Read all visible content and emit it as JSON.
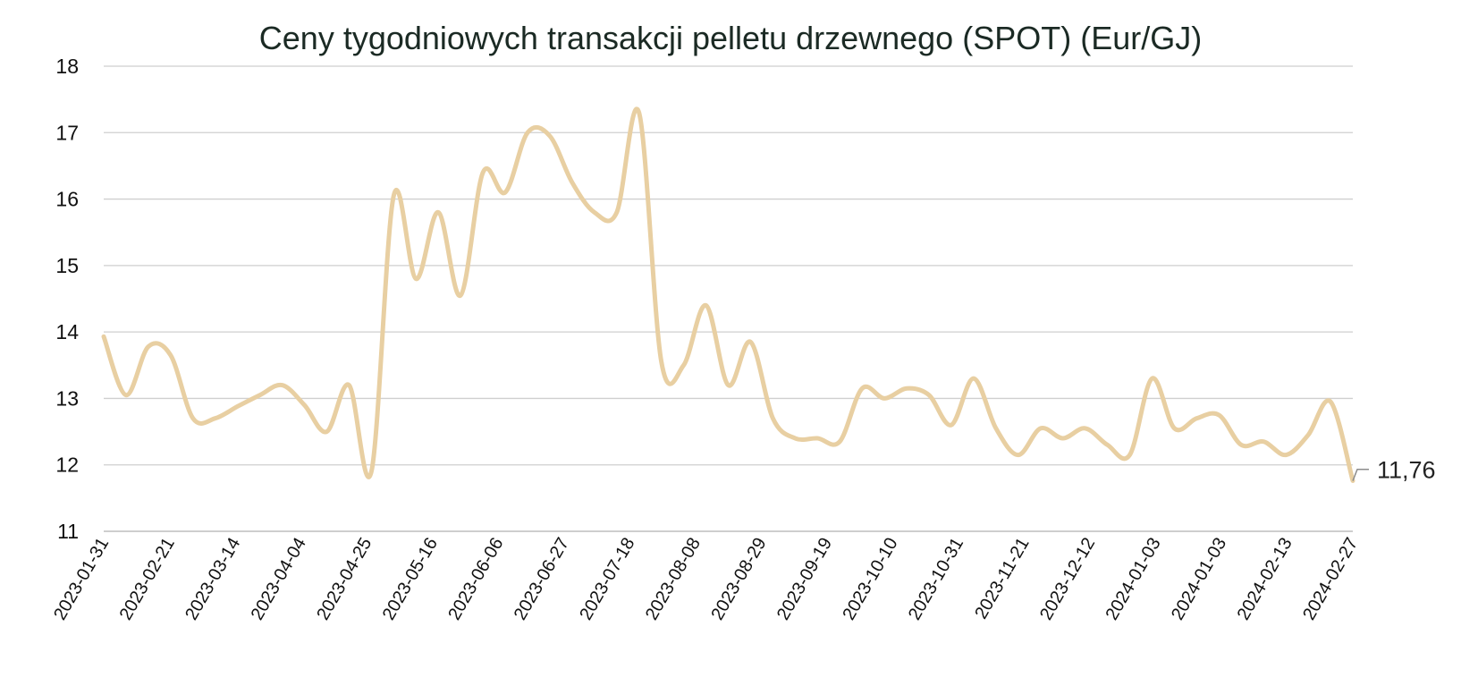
{
  "chart_data": {
    "type": "line",
    "title": "Ceny tygodniowych transakcji pelletu drzewnego (SPOT) (Eur/GJ)",
    "xlabel": "",
    "ylabel": "",
    "ylim": [
      11,
      18
    ],
    "yticks": [
      "11",
      "12",
      "13",
      "14",
      "15",
      "16",
      "17",
      "18"
    ],
    "xtick_labels": [
      "2023-01-31",
      "2023-02-21",
      "2023-03-14",
      "2023-04-04",
      "2023-04-25",
      "2023-05-16",
      "2023-06-06",
      "2023-06-27",
      "2023-07-18",
      "2023-08-08",
      "2023-08-29",
      "2023-09-19",
      "2023-10-10",
      "2023-10-31",
      "2023-11-21",
      "2023-12-12",
      "2024-01-03",
      "2024-01-03",
      "2024-02-13",
      "2024-02-27"
    ],
    "grid": true,
    "legend": "none",
    "line_color": "#e8cfa2",
    "series": [
      {
        "values": [
          13.93,
          13.05,
          13.78,
          13.65,
          12.7,
          12.7,
          12.88,
          13.05,
          13.2,
          12.9,
          12.5,
          13.2,
          11.9,
          16.05,
          14.8,
          15.8,
          14.55,
          16.4,
          16.1,
          17.0,
          16.95,
          16.25,
          15.8,
          15.8,
          17.3,
          13.55,
          13.5,
          14.4,
          13.2,
          13.85,
          12.7,
          12.4,
          12.4,
          12.35,
          13.15,
          13.0,
          13.15,
          13.05,
          12.6,
          13.3,
          12.55,
          12.15,
          12.55,
          12.4,
          12.55,
          12.3,
          12.15,
          13.3,
          12.55,
          12.7,
          12.75,
          12.3,
          12.35,
          12.15,
          12.45,
          12.95,
          11.76
        ]
      }
    ],
    "last_value_label": "11,76"
  }
}
